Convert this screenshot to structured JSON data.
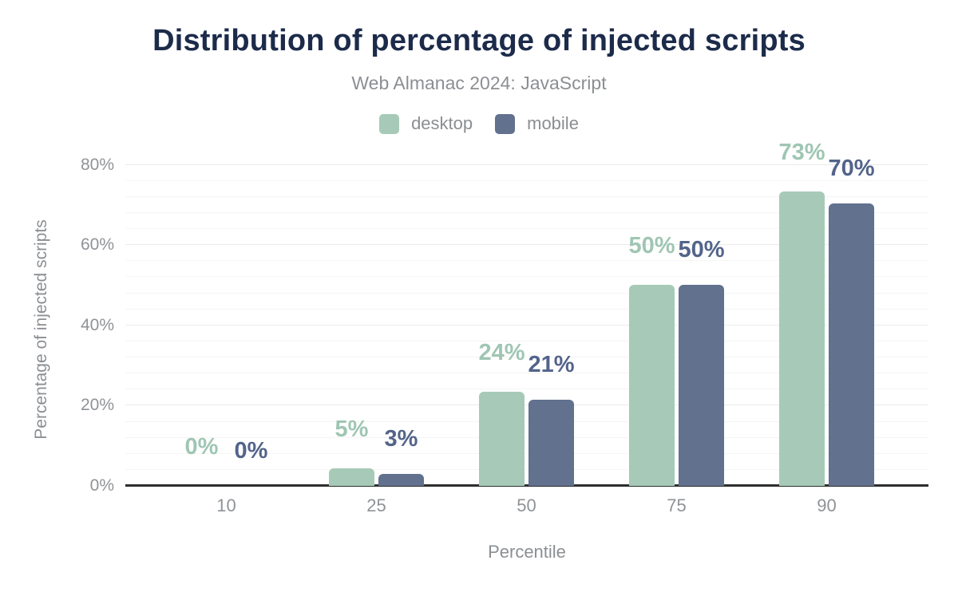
{
  "header": {
    "title": "Distribution of percentage of injected scripts",
    "subtitle": "Web Almanac 2024: JavaScript"
  },
  "legend": [
    {
      "label": "desktop",
      "color": "#a7cab8"
    },
    {
      "label": "mobile",
      "color": "#61718e"
    }
  ],
  "chart_data": {
    "type": "bar",
    "title": "Distribution of percentage of injected scripts",
    "subtitle": "Web Almanac 2024: JavaScript",
    "categories": [
      "10",
      "25",
      "50",
      "75",
      "90"
    ],
    "xlabel": "Percentile",
    "ylabel": "Percentage of injected scripts",
    "ylim": [
      0,
      80
    ],
    "y_ticks": [
      {
        "value": 0,
        "label": "0%"
      },
      {
        "value": 20,
        "label": "20%"
      },
      {
        "value": 40,
        "label": "40%"
      },
      {
        "value": 60,
        "label": "60%"
      },
      {
        "value": 80,
        "label": "80%"
      }
    ],
    "grid": {
      "minor_step_pct": 4,
      "major_step_pct": 20
    },
    "legend_position": "top",
    "series": [
      {
        "name": "desktop",
        "color": "#a7cab8",
        "label_color": "#9fc6b3",
        "values": [
          0,
          5,
          24,
          50,
          73
        ],
        "labels": [
          "0%",
          "5%",
          "24%",
          "50%",
          "73%"
        ],
        "bar_heights_pct": [
          0,
          4.4,
          23.5,
          50.2,
          73.3
        ]
      },
      {
        "name": "mobile",
        "color": "#61718e",
        "label_color": "#53648a",
        "values": [
          0,
          3,
          21,
          50,
          70
        ],
        "labels": [
          "0%",
          "3%",
          "21%",
          "50%",
          "70%"
        ],
        "bar_heights_pct": [
          0,
          3.0,
          21.5,
          50.2,
          70.3
        ]
      }
    ]
  }
}
